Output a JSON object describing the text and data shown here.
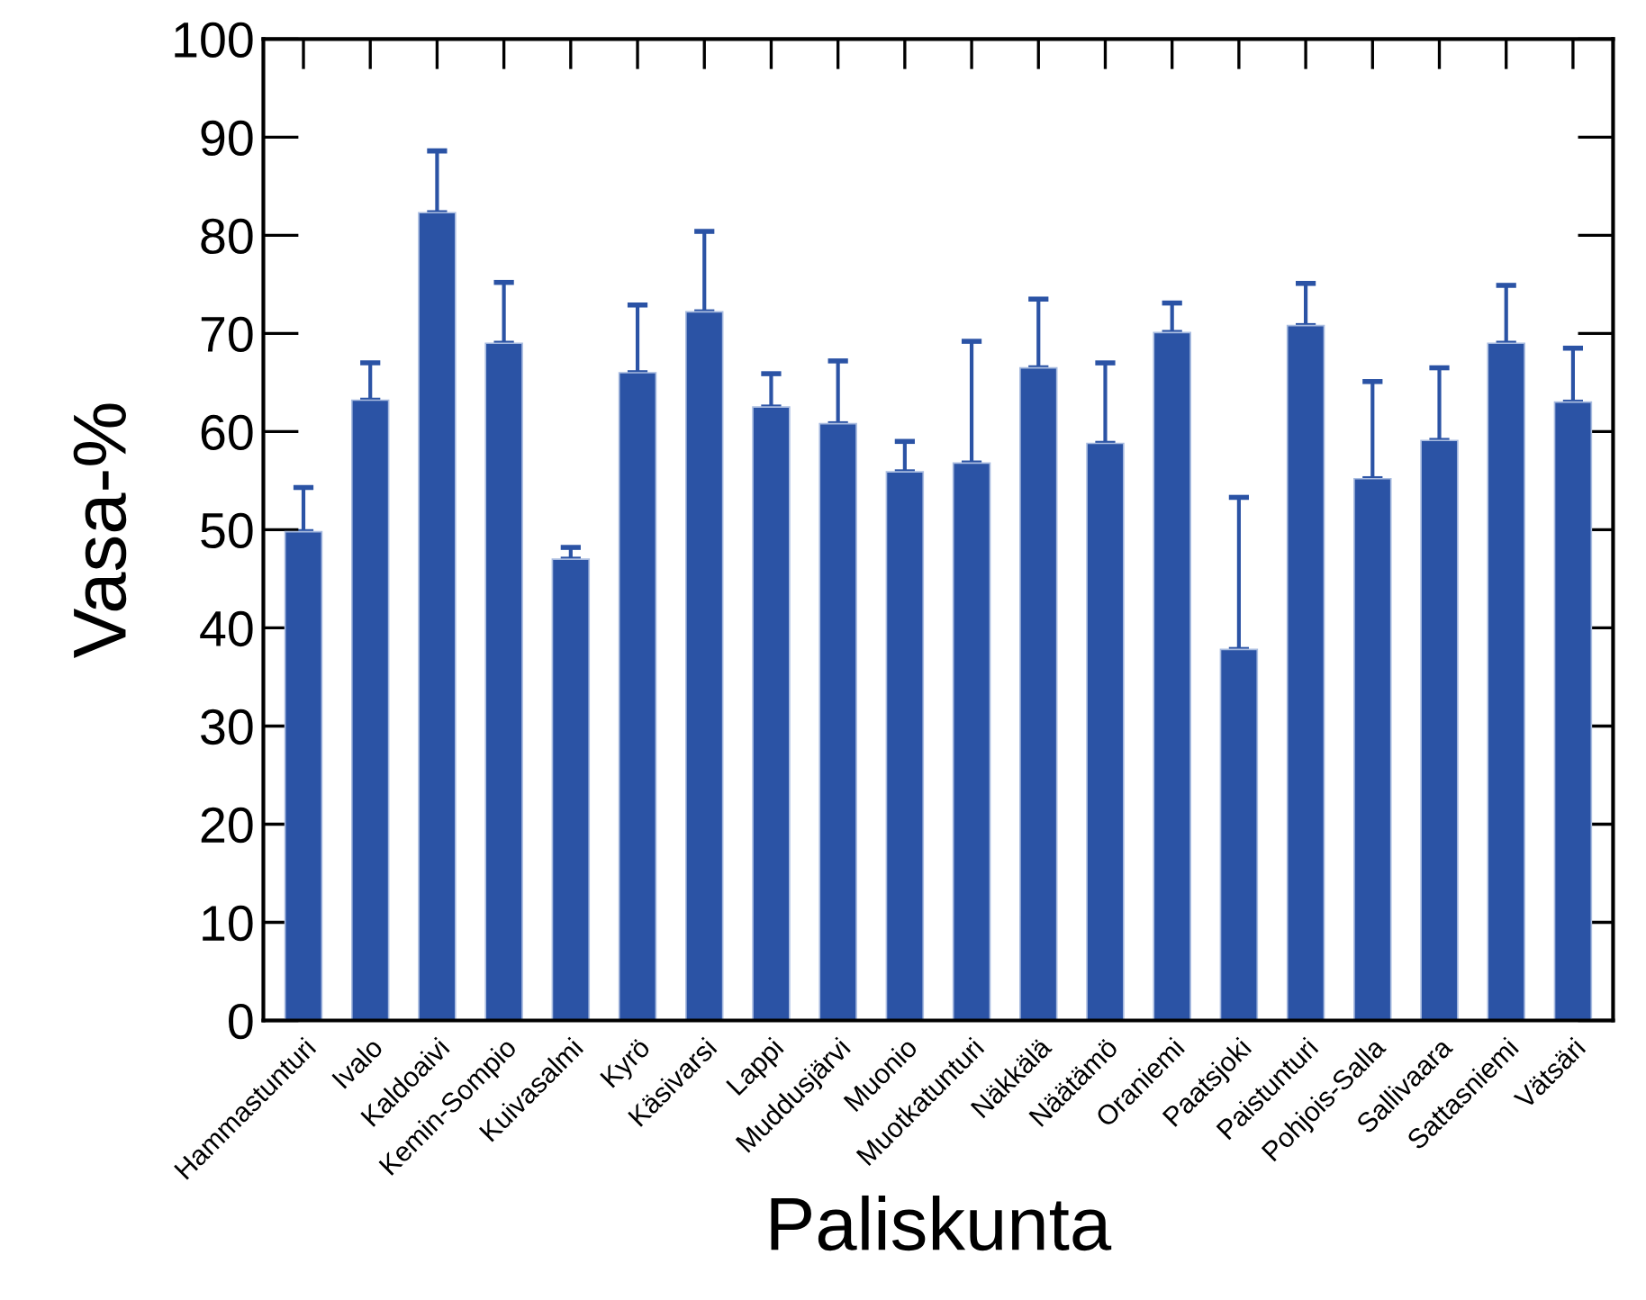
{
  "chart_data": {
    "type": "bar",
    "xlabel": "Paliskunta",
    "ylabel": "Vasa-%",
    "categories": [
      "Hammastunturi",
      "Ivalo",
      "Kaldoaivi",
      "Kemin-Sompio",
      "Kuivasalmi",
      "Kyrö",
      "Käsivarsi",
      "Lappi",
      "Muddusjärvi",
      "Muonio",
      "Muotkatunturi",
      "Näkkälä",
      "Näätämö",
      "Oraniemi",
      "Paatsjoki",
      "Paistunturi",
      "Pohjois-Salla",
      "Sallivaara",
      "Sattasniemi",
      "Vätsäri"
    ],
    "values": [
      49.8,
      63.2,
      82.3,
      69.0,
      47.0,
      66.0,
      72.2,
      62.5,
      60.8,
      55.9,
      56.8,
      66.5,
      58.8,
      70.1,
      37.8,
      70.8,
      55.2,
      59.1,
      69.0,
      63.0
    ],
    "errors": [
      [
        49.8,
        54.3
      ],
      [
        63.2,
        67.0
      ],
      [
        82.3,
        88.6
      ],
      [
        69.0,
        75.2
      ],
      [
        47.0,
        48.2
      ],
      [
        66.0,
        72.9
      ],
      [
        72.2,
        80.4
      ],
      [
        62.5,
        65.9
      ],
      [
        60.8,
        67.2
      ],
      [
        55.9,
        59.0
      ],
      [
        56.8,
        69.2
      ],
      [
        66.5,
        73.5
      ],
      [
        58.8,
        67.0
      ],
      [
        70.1,
        73.1
      ],
      [
        37.8,
        53.3
      ],
      [
        70.8,
        75.1
      ],
      [
        55.2,
        65.1
      ],
      [
        59.1,
        66.5
      ],
      [
        69.0,
        74.9
      ],
      [
        63.0,
        68.5
      ]
    ],
    "color": "#2b53a5",
    "ylim": [
      0,
      100
    ],
    "yticks": [
      0,
      10,
      20,
      30,
      40,
      50,
      60,
      70,
      80,
      90,
      100
    ],
    "grid": false,
    "legend": false
  }
}
